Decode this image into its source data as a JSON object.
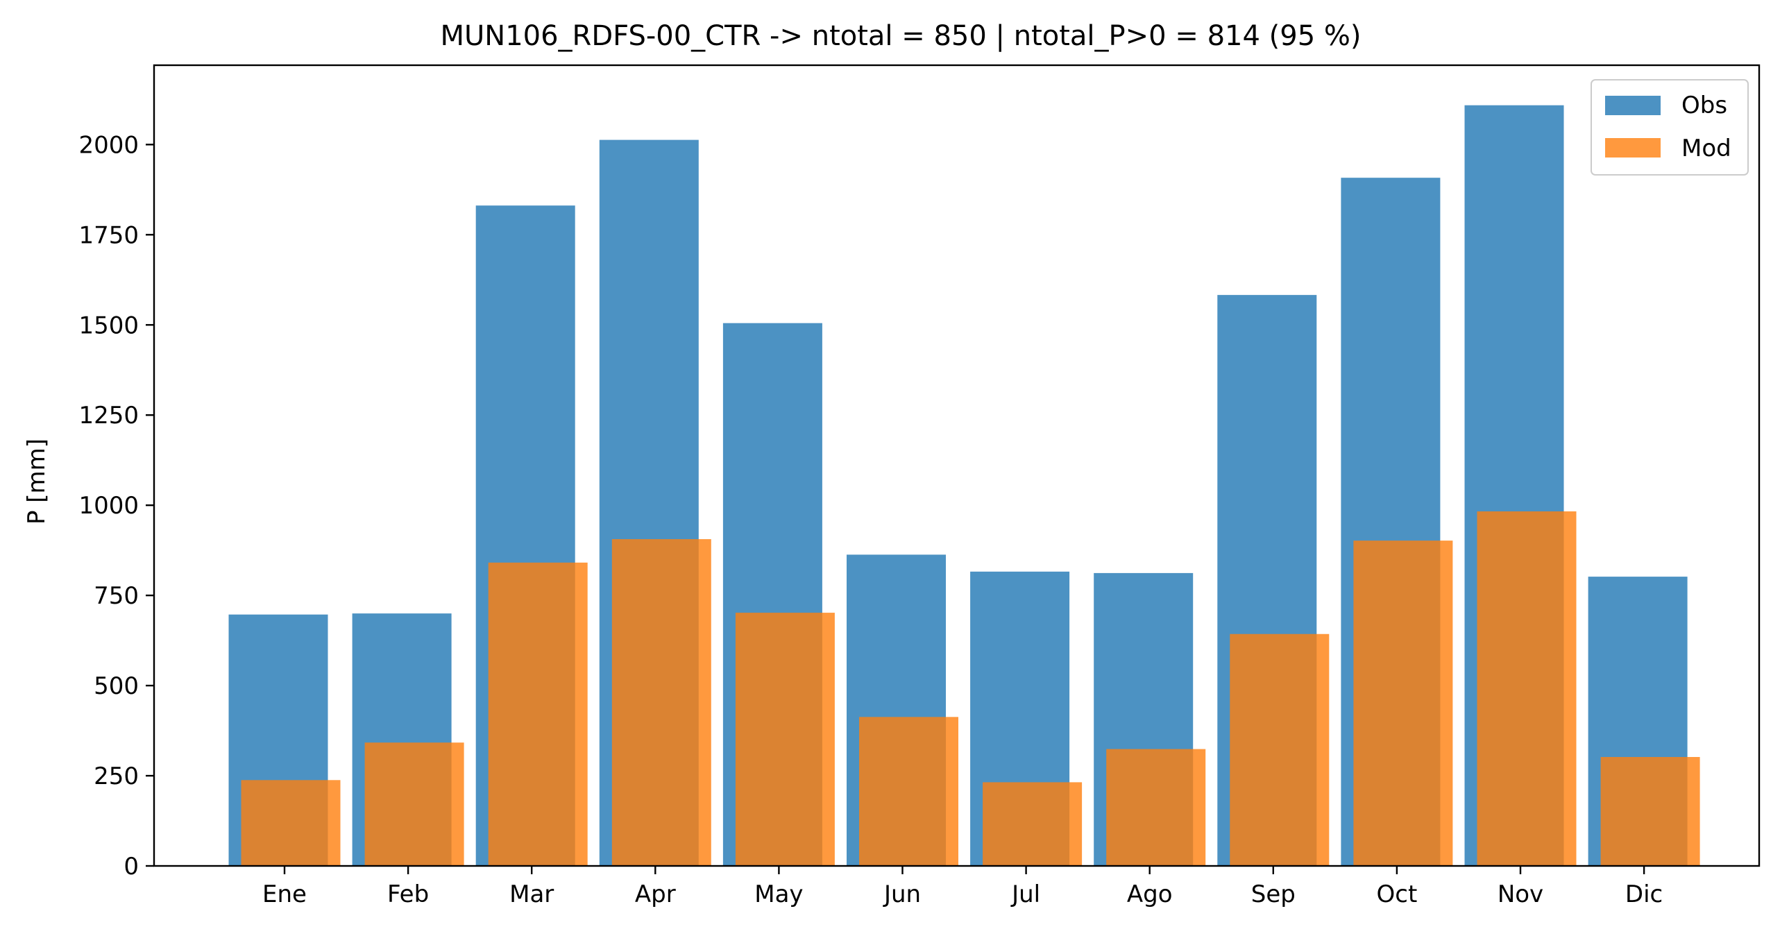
{
  "chart_data": {
    "type": "bar",
    "title": "MUN106_RDFS-00_CTR -> ntotal = 850 | ntotal_P>0 = 814 (95 %)",
    "xlabel": "",
    "ylabel": "P [mm]",
    "ylim": [
      0,
      2220
    ],
    "yticks": [
      0,
      250,
      500,
      750,
      1000,
      1250,
      1500,
      1750,
      2000
    ],
    "grid": false,
    "legend_position": "top-right",
    "categories": [
      "Ene",
      "Feb",
      "Mar",
      "Apr",
      "May",
      "Jun",
      "Jul",
      "Ago",
      "Sep",
      "Oct",
      "Nov",
      "Dic"
    ],
    "series": [
      {
        "name": "Obs",
        "color": "#1f77b4",
        "values": [
          697,
          700,
          1831,
          2013,
          1505,
          863,
          816,
          812,
          1583,
          1908,
          2109,
          802
        ]
      },
      {
        "name": "Mod",
        "color": "#ff7f0e",
        "values": [
          238,
          342,
          841,
          906,
          702,
          413,
          232,
          324,
          643,
          902,
          983,
          302
        ]
      }
    ]
  }
}
